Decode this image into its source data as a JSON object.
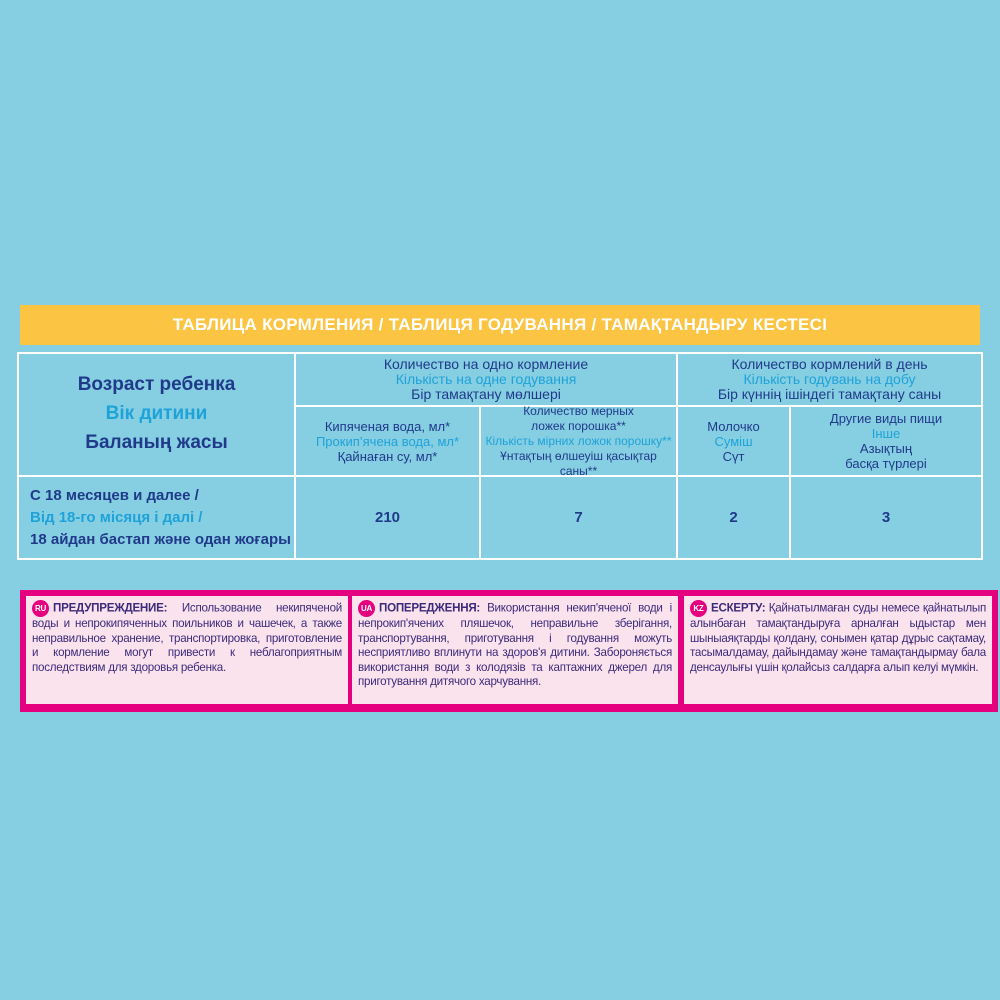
{
  "title": "ТАБЛИЦА КОРМЛЕНИЯ / ТАБЛИЦЯ ГОДУВАННЯ / ТАМАҚТАНДЫРУ КЕСТЕСІ",
  "table": {
    "age_header": [
      "Возраст ребенка",
      "Вік дитини",
      "Баланың жасы"
    ],
    "group1": [
      "Количество на одно кормление",
      "Кількість на одне годування",
      "Бір тамақтану мөлшері"
    ],
    "group2": [
      "Количество кормлений в день",
      "Кількість годувань на добу",
      "Бір күннің ішіндегі тамақтану саны"
    ],
    "columns": [
      {
        "ru": [
          "Кипяченая вода, мл*"
        ],
        "ua": [
          "Прокип’ячена вода, мл*"
        ],
        "kz": [
          "Қайнаған су, мл*"
        ]
      },
      {
        "ru": [
          "Количество мерных",
          "ложек порошка**"
        ],
        "ua": [
          "Кількість мірних ложок порошку**"
        ],
        "kz": [
          "Ұнтақтың өлшеуіш қасықтар саны**"
        ]
      },
      {
        "ru": [
          "Молочко"
        ],
        "ua": [
          "Суміш"
        ],
        "kz": [
          "Сүт"
        ]
      },
      {
        "ru": [
          "Другие виды пищи"
        ],
        "ua": [
          "Інше"
        ],
        "kz": [
          "Азықтың",
          "басқа түрлері"
        ]
      }
    ],
    "row": {
      "age": [
        "С 18 месяцев и далее /",
        "Від 18-го місяця і далі /",
        "18 айдан бастап және одан жоғары"
      ],
      "values": [
        "210",
        "7",
        "2",
        "3"
      ]
    }
  },
  "warnings": [
    {
      "code": "RU",
      "label": "ПРЕДУПРЕЖДЕНИЕ:",
      "text": "Использование некипяченой воды и непрокипяченных поильников и чашечек, а также неправильное хранение, транспортировка, приготовление и кормление могут привести к неблагоприятным последствиям для здоровья ребенка."
    },
    {
      "code": "UA",
      "label": "ПОПЕРЕДЖЕННЯ:",
      "text": "Використання некип'яченої води і непрокип'ячених пляшечок, неправильне зберігання, транспортування, приготування і годування можуть несприятливо вплинути на здоров'я дитини. Забороняється використання води з колодязів та каптажних джерел для приготування дитячого харчування."
    },
    {
      "code": "KZ",
      "label": "ЕСКЕРТУ:",
      "text": "Қайнатылмаған суды немесе қайнатылып алынбаған тамақтандыруға арналған ыдыстар мен шыныаяқтарды қолдану, сонымен қатар дұрыс сақтамау, тасымалдамау, дайындамау және тамақтандырмау бала денсаулығы үшін қолайсыз салдарға алып келуі мүмкін."
    }
  ]
}
